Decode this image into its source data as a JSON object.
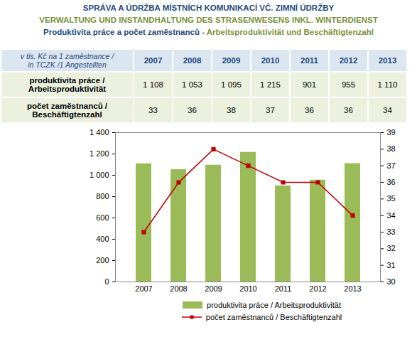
{
  "header": {
    "title": "SPRÁVA A ÚDRŽBA MÍSTNÍCH KOMUNIKACÍ VČ. ZIMNÍ ÚDRŽBY",
    "title_de": "VERWALTUNG UND INSTANDHALTUNG DES STRASENWESENS INKL. WINTERDIENST",
    "subtitle": [
      "Produktivita práce a počet zaměstnanců - ",
      "Arbeitsproduktivität und Beschäftigtenzahl"
    ]
  },
  "table": {
    "header": [
      "v tis. Kč na 1 zaměstnance /\nin TCZK /1 Angestellten",
      "2007",
      "2008",
      "2009",
      "2010",
      "2011",
      "2012",
      "2013"
    ],
    "rows": [
      [
        "produktivita práce /\nArbeitsproduktivität",
        "1 108",
        "1 053",
        "1 095",
        "1 215",
        "901",
        "955",
        "1 110"
      ],
      [
        "počet zaměstnanců /\nBeschäftigtenzahl",
        "33",
        "36",
        "38",
        "37",
        "36",
        "36",
        "34"
      ]
    ]
  },
  "chart_data": {
    "type": "bar",
    "categories": [
      "2007",
      "2008",
      "2009",
      "2010",
      "2011",
      "2012",
      "2013"
    ],
    "series": [
      {
        "name": "produktivita práce / Arbeitsproduktivität",
        "type": "bar",
        "color": "#9BBB59",
        "values": [
          1108,
          1053,
          1095,
          1215,
          901,
          955,
          1110
        ]
      },
      {
        "name": "počet zaměstnanců / Beschäftigtenzahl",
        "type": "line",
        "color": "#C00000",
        "marker": "square",
        "axis": "y2",
        "values": [
          33,
          36,
          38,
          37,
          36,
          36,
          34
        ]
      }
    ],
    "ylim": [
      0,
      1400
    ],
    "yticks": [
      0,
      200,
      400,
      600,
      800,
      {
        "value": 1000,
        "label": "1 000"
      },
      {
        "value": 1200,
        "label": "1 200"
      },
      {
        "value": 1400,
        "label": "1 400"
      }
    ],
    "y2lim": [
      30,
      39
    ],
    "y2ticks": [
      30,
      31,
      32,
      33,
      34,
      35,
      36,
      37,
      38,
      39
    ],
    "grid": false,
    "legend": "bottom"
  }
}
